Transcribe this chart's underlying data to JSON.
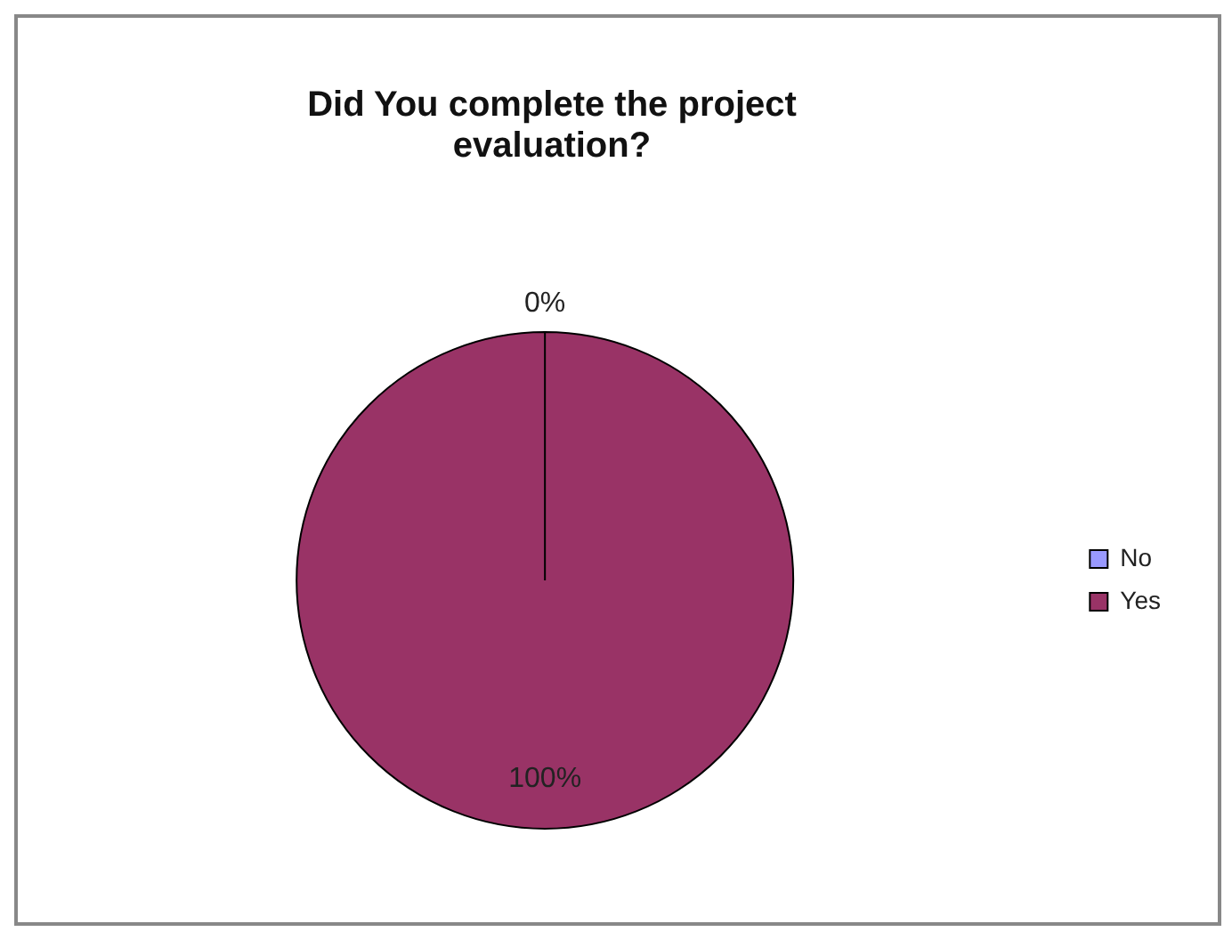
{
  "chart_data": {
    "type": "pie",
    "title": "Did You complete the project evaluation?",
    "categories": [
      "No",
      "Yes"
    ],
    "values": [
      0,
      100
    ],
    "colors": [
      "#9999ff",
      "#993366"
    ],
    "value_labels": [
      "0%",
      "100%"
    ],
    "legend": "right"
  }
}
